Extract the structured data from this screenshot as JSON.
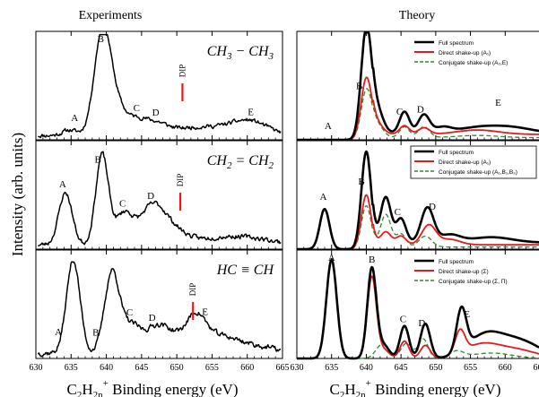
{
  "figure": {
    "ylabel": "Intensity (arb. units)",
    "columns": [
      {
        "title": "Experiments",
        "xlabel": "C₂H₂ₙ⁺  Binding energy (eV)",
        "xlabel_main": "C",
        "xlabel_sub1": "2",
        "xlabel_mid": "H",
        "xlabel_sub2": "2n",
        "xlabel_sup": "+",
        "xlabel_tail": "Binding energy (eV)"
      },
      {
        "title": "Theory",
        "xlabel": "C₂H₂ₙ⁺  Binding energy (eV)",
        "xlabel_main": "C",
        "xlabel_sub1": "2",
        "xlabel_mid": "H",
        "xlabel_sub2": "2n",
        "xlabel_sup": "+",
        "xlabel_tail": "Binding energy (eV)"
      }
    ],
    "xticks": [
      "630",
      "635",
      "640",
      "645",
      "650",
      "655",
      "660",
      "665"
    ]
  },
  "chart_data": [
    {
      "type": "line",
      "panel": "experiment",
      "molecule": "CH₃ − CH₃",
      "mol_parts": [
        "CH",
        "3",
        " − CH",
        "3"
      ],
      "xlim": [
        630,
        665
      ],
      "dip_label": "DIP",
      "dip_x": 650.8,
      "peaks": [
        {
          "label": "A",
          "x": 635.5
        },
        {
          "label": "B",
          "x": 639.2
        },
        {
          "label": "C",
          "x": 644.3
        },
        {
          "label": "D",
          "x": 647.0
        },
        {
          "label": "E",
          "x": 660.5
        }
      ],
      "components": [
        {
          "x": 634.8,
          "amp": 0.05,
          "w": 1.0
        },
        {
          "x": 639.4,
          "amp": 0.83,
          "w": 1.15
        },
        {
          "x": 641.0,
          "amp": 0.3,
          "w": 1.6
        },
        {
          "x": 644.5,
          "amp": 0.12,
          "w": 1.4
        },
        {
          "x": 647.2,
          "amp": 0.1,
          "w": 1.6
        },
        {
          "x": 651.5,
          "amp": 0.05,
          "w": 2.5
        },
        {
          "x": 656.0,
          "amp": 0.06,
          "w": 3.0
        },
        {
          "x": 660.5,
          "amp": 0.12,
          "w": 2.5
        }
      ],
      "baseline": 0.04,
      "noise": 0.035,
      "seed": 11
    },
    {
      "type": "line",
      "panel": "experiment",
      "molecule": "CH₂ = CH₂",
      "mol_parts": [
        "CH",
        "2",
        " = CH",
        "2"
      ],
      "xlim": [
        630,
        665
      ],
      "dip_label": "DIP",
      "dip_x": 650.5,
      "peaks": [
        {
          "label": "A",
          "x": 633.8
        },
        {
          "label": "B",
          "x": 638.8
        },
        {
          "label": "C",
          "x": 642.3
        },
        {
          "label": "D",
          "x": 646.3
        }
      ],
      "components": [
        {
          "x": 634.2,
          "amp": 0.48,
          "w": 0.95
        },
        {
          "x": 639.4,
          "amp": 0.83,
          "w": 0.9
        },
        {
          "x": 642.5,
          "amp": 0.28,
          "w": 1.2
        },
        {
          "x": 646.5,
          "amp": 0.34,
          "w": 1.8
        },
        {
          "x": 649.5,
          "amp": 0.12,
          "w": 2.0
        },
        {
          "x": 656.0,
          "amp": 0.06,
          "w": 3.0
        },
        {
          "x": 661.0,
          "amp": 0.05,
          "w": 3.0
        }
      ],
      "baseline": 0.04,
      "noise": 0.04,
      "seed": 23
    },
    {
      "type": "line",
      "panel": "experiment",
      "molecule": "HC ≡ CH",
      "mol_parts": [
        "HC ≡ CH"
      ],
      "xlim": [
        630,
        665
      ],
      "dip_label": "DIP",
      "dip_x": 652.3,
      "peaks": [
        {
          "label": "A",
          "x": 633.2
        },
        {
          "label": "B",
          "x": 638.5
        },
        {
          "label": "C",
          "x": 643.3
        },
        {
          "label": "D",
          "x": 646.5
        },
        {
          "label": "E",
          "x": 654.0
        }
      ],
      "components": [
        {
          "x": 635.3,
          "amp": 0.86,
          "w": 0.95
        },
        {
          "x": 640.8,
          "amp": 0.74,
          "w": 1.05
        },
        {
          "x": 643.5,
          "amp": 0.24,
          "w": 1.3
        },
        {
          "x": 647.0,
          "amp": 0.22,
          "w": 1.6
        },
        {
          "x": 649.5,
          "amp": 0.12,
          "w": 1.6
        },
        {
          "x": 652.7,
          "amp": 0.3,
          "w": 1.4
        },
        {
          "x": 656.0,
          "amp": 0.14,
          "w": 2.5
        },
        {
          "x": 661.0,
          "amp": 0.06,
          "w": 3.0
        }
      ],
      "baseline": 0.05,
      "noise": 0.045,
      "seed": 37
    },
    {
      "type": "line",
      "panel": "theory",
      "xlim": [
        630,
        665
      ],
      "legend": {
        "full": "Full spectrum",
        "direct": "Direct shake-up (A₁)",
        "conj": "Conjugate shake-up (A₂,E)"
      },
      "peaks": [
        {
          "label": "A",
          "x": 634.5
        },
        {
          "label": "B",
          "x": 639.0
        },
        {
          "label": "C",
          "x": 644.8
        },
        {
          "label": "D",
          "x": 647.8
        },
        {
          "label": "E",
          "x": 659.0
        }
      ],
      "series": [
        {
          "name": "Full spectrum",
          "color": "#000000",
          "dash": "",
          "width": 2.6,
          "tail": 0.06,
          "components": [
            {
              "x": 640.0,
              "amp": 1.0,
              "w": 0.75
            },
            {
              "x": 641.5,
              "amp": 0.22,
              "w": 0.9
            },
            {
              "x": 645.5,
              "amp": 0.2,
              "w": 0.7
            },
            {
              "x": 648.3,
              "amp": 0.17,
              "w": 0.8
            },
            {
              "x": 651.0,
              "amp": 0.05,
              "w": 1.2
            },
            {
              "x": 656.0,
              "amp": 0.05,
              "w": 3.0
            },
            {
              "x": 661.0,
              "amp": 0.05,
              "w": 3.0
            }
          ]
        },
        {
          "name": "Direct shake-up (A₁)",
          "color": "#e41a1c",
          "dash": "",
          "width": 1.8,
          "tail": 0.05,
          "components": [
            {
              "x": 640.0,
              "amp": 0.55,
              "w": 0.75
            },
            {
              "x": 641.5,
              "amp": 0.1,
              "w": 0.9
            },
            {
              "x": 645.5,
              "amp": 0.08,
              "w": 0.7
            },
            {
              "x": 648.3,
              "amp": 0.06,
              "w": 0.8
            },
            {
              "x": 656.0,
              "amp": 0.04,
              "w": 3.0
            }
          ]
        },
        {
          "name": "Conjugate shake-up (A₂,E)",
          "color": "#2e8b2e",
          "dash": "5,3",
          "width": 1.3,
          "tail": 0.02,
          "components": [
            {
              "x": 640.0,
              "amp": 0.44,
              "w": 0.75
            },
            {
              "x": 641.5,
              "amp": 0.12,
              "w": 0.9
            },
            {
              "x": 645.5,
              "amp": 0.1,
              "w": 0.7
            },
            {
              "x": 648.3,
              "amp": 0.1,
              "w": 0.8
            },
            {
              "x": 656.0,
              "amp": 0.02,
              "w": 3.0
            }
          ]
        }
      ]
    },
    {
      "type": "line",
      "panel": "theory",
      "xlim": [
        630,
        665
      ],
      "legend": {
        "full": "Full spectrum",
        "direct": "Direct shake-up (A₁)",
        "conj": "Conjugate shake-up (A₁,B₁,B₃)"
      },
      "peaks": [
        {
          "label": "A",
          "x": 633.8
        },
        {
          "label": "B",
          "x": 639.3
        },
        {
          "label": "C",
          "x": 644.5
        },
        {
          "label": "D",
          "x": 649.5
        }
      ],
      "series": [
        {
          "name": "Full spectrum",
          "color": "#000000",
          "dash": "",
          "width": 2.6,
          "tail": 0.06,
          "components": [
            {
              "x": 634.0,
              "amp": 0.37,
              "w": 0.7
            },
            {
              "x": 640.0,
              "amp": 0.9,
              "w": 0.7
            },
            {
              "x": 642.8,
              "amp": 0.42,
              "w": 0.75
            },
            {
              "x": 645.0,
              "amp": 0.22,
              "w": 0.7
            },
            {
              "x": 648.8,
              "amp": 0.32,
              "w": 0.9
            },
            {
              "x": 652.0,
              "amp": 0.07,
              "w": 1.5
            },
            {
              "x": 658.0,
              "amp": 0.05,
              "w": 3.0
            }
          ]
        },
        {
          "name": "Direct shake-up (A₁)",
          "color": "#e41a1c",
          "dash": "",
          "width": 1.8,
          "tail": 0.04,
          "components": [
            {
              "x": 634.0,
              "amp": 0.37,
              "w": 0.7
            },
            {
              "x": 640.0,
              "amp": 0.5,
              "w": 0.7
            },
            {
              "x": 642.8,
              "amp": 0.12,
              "w": 0.75
            },
            {
              "x": 645.0,
              "amp": 0.08,
              "w": 0.7
            },
            {
              "x": 649.0,
              "amp": 0.18,
              "w": 1.0
            },
            {
              "x": 652.0,
              "amp": 0.05,
              "w": 1.5
            }
          ]
        },
        {
          "name": "Conjugate shake-up (A₁,B₁,B₃)",
          "color": "#2e8b2e",
          "dash": "5,3",
          "width": 1.3,
          "tail": 0.02,
          "components": [
            {
              "x": 634.0,
              "amp": 0.37,
              "w": 0.7
            },
            {
              "x": 640.0,
              "amp": 0.4,
              "w": 0.7
            },
            {
              "x": 642.8,
              "amp": 0.3,
              "w": 0.75
            },
            {
              "x": 645.0,
              "amp": 0.12,
              "w": 0.7
            },
            {
              "x": 648.5,
              "amp": 0.1,
              "w": 0.9
            }
          ]
        }
      ]
    },
    {
      "type": "line",
      "panel": "theory",
      "xlim": [
        630,
        665
      ],
      "legend": {
        "full": "Full spectrum",
        "direct": "Direct shake-up (Σ)",
        "conj": "Conjugate shake-up (Σ, Π)"
      },
      "peaks": [
        {
          "label": "A",
          "x": 635.0
        },
        {
          "label": "B",
          "x": 640.8
        },
        {
          "label": "C",
          "x": 645.3
        },
        {
          "label": "D",
          "x": 648.0
        },
        {
          "label": "E",
          "x": 654.5
        }
      ],
      "series": [
        {
          "name": "Full spectrum",
          "color": "#000000",
          "dash": "",
          "width": 2.6,
          "tail": 0.0,
          "components": [
            {
              "x": 635.0,
              "amp": 0.91,
              "w": 0.75
            },
            {
              "x": 640.8,
              "amp": 0.83,
              "w": 0.65
            },
            {
              "x": 642.5,
              "amp": 0.12,
              "w": 0.8
            },
            {
              "x": 645.5,
              "amp": 0.3,
              "w": 0.65
            },
            {
              "x": 648.5,
              "amp": 0.32,
              "w": 0.7
            },
            {
              "x": 653.7,
              "amp": 0.39,
              "w": 0.7
            },
            {
              "x": 657.0,
              "amp": 0.2,
              "w": 2.5
            },
            {
              "x": 662.0,
              "amp": 0.16,
              "w": 3.0
            }
          ]
        },
        {
          "name": "Direct shake-up (Σ)",
          "color": "#e41a1c",
          "dash": "",
          "width": 1.8,
          "tail": 0.0,
          "components": [
            {
              "x": 635.0,
              "amp": 0.91,
              "w": 0.75
            },
            {
              "x": 640.8,
              "amp": 0.75,
              "w": 0.65
            },
            {
              "x": 642.5,
              "amp": 0.08,
              "w": 0.8
            },
            {
              "x": 645.5,
              "amp": 0.16,
              "w": 0.65
            },
            {
              "x": 648.5,
              "amp": 0.12,
              "w": 0.7
            },
            {
              "x": 653.5,
              "amp": 0.21,
              "w": 0.7
            },
            {
              "x": 656.5,
              "amp": 0.12,
              "w": 2.5
            },
            {
              "x": 661.5,
              "amp": 0.08,
              "w": 3.0
            }
          ]
        },
        {
          "name": "Conjugate shake-up (Σ, Π)",
          "color": "#2e8b2e",
          "dash": "5,3",
          "width": 1.3,
          "tail": 0.0,
          "components": [
            {
              "x": 635.0,
              "amp": 0.9,
              "w": 0.75
            },
            {
              "x": 642.3,
              "amp": 0.13,
              "w": 0.9
            },
            {
              "x": 645.8,
              "amp": 0.14,
              "w": 0.8
            },
            {
              "x": 648.2,
              "amp": 0.18,
              "w": 0.7
            },
            {
              "x": 653.0,
              "amp": 0.06,
              "w": 1.0
            },
            {
              "x": 658.0,
              "amp": 0.05,
              "w": 3.0
            }
          ]
        }
      ]
    }
  ]
}
